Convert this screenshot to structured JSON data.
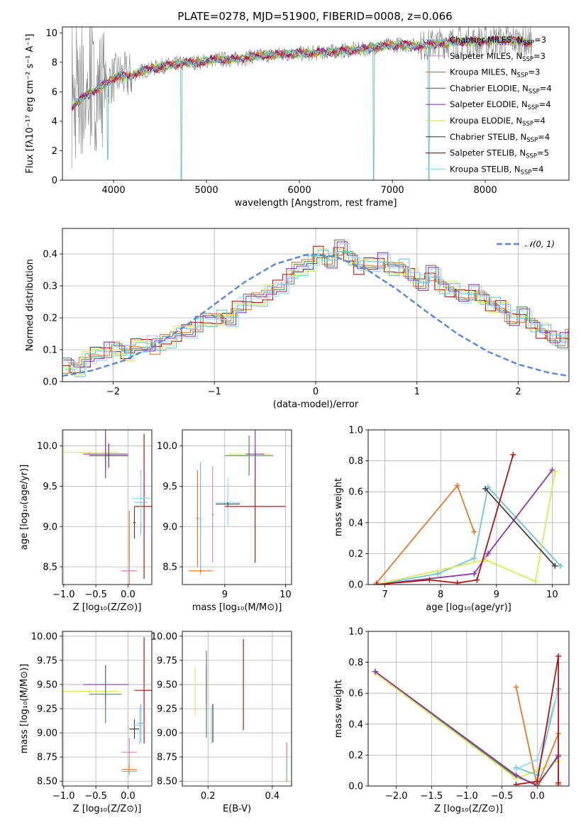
{
  "figure_title": "PLATE=0278, MJD=51900, FIBERID=0008, z=0.066",
  "colors": {
    "Chabrier MILES": "#6fc4d4",
    "Salpeter MILES": "#e486c0",
    "Kroupa MILES": "#e07a33",
    "Chabrier ELODIE": "#5a8a5a",
    "Salpeter ELODIE": "#8a38b0",
    "Kroupa ELODIE": "#d6ea5a",
    "Chabrier STELIB": "#404040",
    "Salpeter STELIB": "#b01818",
    "Kroupa STELIB": "#9ad8ee",
    "data": "#808080",
    "gauss": "#5a86d6"
  },
  "chart_data": [
    {
      "id": "spectrum",
      "type": "line",
      "title": "PLATE=0278, MJD=51900, FIBERID=0008, z=0.066",
      "xlabel": "wavelength [Angstrom, rest frame]",
      "ylabel": "Flux [f_λ 10^-17 erg cm^-2 s^-1 A^-1]",
      "xlim": [
        3450,
        8900
      ],
      "ylim": [
        0,
        10.4
      ],
      "xticks": [
        4000,
        5000,
        6000,
        7000,
        8000
      ],
      "yticks": [
        0,
        2,
        4,
        6,
        8,
        10
      ],
      "legend_loc": "right",
      "legend": [
        "Chabrier MILES, N_SSP=3",
        "Salpeter MILES, N_SSP=3",
        "Kroupa MILES, N_SSP=3",
        "Chabrier ELODIE, N_SSP=4",
        "Salpeter ELODIE, N_SSP=4",
        "Kroupa ELODIE, N_SSP=4",
        "Chabrier STELIB, N_SSP=4",
        "Salpeter STELIB, N_SSP=5",
        "Kroupa STELIB, N_SSP=4"
      ],
      "model_envelope": {
        "x": [
          3550,
          3650,
          3750,
          3850,
          3950,
          4050,
          4150,
          4300,
          4500,
          4700,
          4900,
          5100,
          5300,
          5500,
          5700,
          5900,
          6100,
          6300,
          6500,
          6700,
          6900,
          7100,
          7300,
          7500,
          7700,
          7900,
          8100,
          8300,
          8500
        ],
        "y": [
          5.0,
          5.5,
          5.9,
          6.3,
          6.7,
          7.1,
          7.0,
          7.4,
          7.7,
          7.9,
          8.0,
          8.2,
          8.2,
          8.4,
          8.5,
          8.6,
          8.6,
          8.7,
          8.8,
          8.9,
          9.1,
          9.2,
          9.1,
          9.3,
          9.4,
          9.4,
          9.5,
          9.5,
          9.3
        ]
      },
      "absorption_dips": [
        {
          "x": 3935,
          "y": 1.4
        },
        {
          "x": 4730,
          "y": 0.0
        },
        {
          "x": 6800,
          "y": 0.0
        },
        {
          "x": 7395,
          "y": 0.0
        }
      ]
    },
    {
      "id": "residuals",
      "type": "histogram",
      "xlabel": "(data-model)/error",
      "ylabel": "Normed distribution",
      "xlim": [
        -2.5,
        2.5
      ],
      "ylim": [
        0,
        0.48
      ],
      "xticks": [
        -2,
        -1,
        0,
        1,
        2
      ],
      "yticks": [
        0.0,
        0.1,
        0.2,
        0.3,
        0.4
      ],
      "grid": true,
      "legend": [
        "𝒩(0, 1)"
      ],
      "legend_loc": "top-right",
      "bin_width": 0.1,
      "bins_from": -2.5,
      "values": [
        0.05,
        0.04,
        0.07,
        0.09,
        0.1,
        0.1,
        0.09,
        0.11,
        0.12,
        0.11,
        0.13,
        0.15,
        0.16,
        0.18,
        0.19,
        0.2,
        0.19,
        0.24,
        0.25,
        0.26,
        0.28,
        0.3,
        0.33,
        0.35,
        0.37,
        0.4,
        0.38,
        0.42,
        0.39,
        0.36,
        0.37,
        0.38,
        0.35,
        0.36,
        0.33,
        0.31,
        0.34,
        0.3,
        0.29,
        0.27,
        0.28,
        0.26,
        0.24,
        0.23,
        0.2,
        0.21,
        0.18,
        0.16,
        0.14,
        0.13,
        0.14,
        0.13,
        0.12,
        0.1,
        0.09,
        0.08,
        0.09,
        0.07,
        0.06,
        0.05,
        0.05,
        0.04,
        0.04,
        0.03,
        0.03,
        0.03,
        0.02,
        0.03,
        0.02,
        0.02,
        0.02
      ],
      "gauss_x": [
        -2.5,
        -2.2,
        -1.9,
        -1.6,
        -1.3,
        -1.0,
        -0.7,
        -0.4,
        -0.1,
        0.0,
        0.2,
        0.5,
        0.8,
        1.1,
        1.4,
        1.7,
        2.0,
        2.3,
        2.5
      ],
      "gauss_y": [
        0.0175,
        0.0355,
        0.0656,
        0.1109,
        0.1714,
        0.242,
        0.3123,
        0.3683,
        0.397,
        0.3989,
        0.391,
        0.3521,
        0.2897,
        0.2179,
        0.1497,
        0.094,
        0.054,
        0.0283,
        0.0175
      ]
    },
    {
      "id": "age_vs_Z",
      "type": "errorbar",
      "xlabel": "Z [log10(Z/Z☉)]",
      "ylabel": "age [log10(age/yr)]",
      "xlim": [
        -1.02,
        0.37
      ],
      "ylim": [
        8.28,
        10.2
      ],
      "xticks": [
        -1.0,
        -0.5,
        0.0
      ],
      "yticks": [
        8.5,
        9.0,
        9.5,
        10.0
      ],
      "grid": true,
      "points": [
        {
          "m": "Kroupa ELODIE",
          "x": -0.6,
          "y": 9.92,
          "xerr": 0.45,
          "yerr": 0.02
        },
        {
          "m": "Chabrier ELODIE",
          "x": -0.35,
          "y": 9.9,
          "xerr": 0.3,
          "yerr": 0.2
        },
        {
          "m": "Salpeter ELODIE",
          "x": -0.35,
          "y": 9.9,
          "xerr": 0.35,
          "yerr": 0.3
        },
        {
          "m": "Chabrier STELIB",
          "x": -0.3,
          "y": 9.88,
          "xerr": 0.3,
          "yerr": 0.15
        },
        {
          "m": "Salpeter STELIB",
          "x": 0.25,
          "y": 9.25,
          "xerr": 0.15,
          "yerr": 0.9
        },
        {
          "m": "Chabrier MILES",
          "x": 0.2,
          "y": 9.3,
          "xerr": 0.1,
          "yerr": 0.4
        },
        {
          "m": "Kroupa STELIB",
          "x": 0.2,
          "y": 9.35,
          "xerr": 0.15,
          "yerr": 0.3
        },
        {
          "m": "Kroupa MILES",
          "x": 0.02,
          "y": 8.45,
          "xerr": 0.12,
          "yerr": 0.75
        },
        {
          "m": "Salpeter MILES",
          "x": 0.02,
          "y": 8.45,
          "xerr": 0.12,
          "yerr": 0.05
        },
        {
          "m": "Chabrier STELIB",
          "x": 0.1,
          "y": 9.05,
          "xerr": 0.02,
          "yerr": 0.2
        }
      ]
    },
    {
      "id": "age_vs_mass",
      "type": "errorbar",
      "xlabel": "mass [log10(M/M☉)]",
      "ylabel": "",
      "xlim": [
        8.3,
        10.1
      ],
      "ylim": [
        8.28,
        10.2
      ],
      "xticks": [
        9,
        10
      ],
      "xticklabels": [
        "9",
        "10"
      ],
      "yticks": [
        8.5,
        9.0,
        9.5,
        10.0
      ],
      "grid": true,
      "extra_xtick": 8,
      "points": [
        {
          "m": "Chabrier MILES",
          "x": 8.6,
          "y": 9.1,
          "xerr": 0.02,
          "yerr": 0.7
        },
        {
          "m": "Salpeter MILES",
          "x": 8.8,
          "y": 9.15,
          "xerr": 0.02,
          "yerr": 0.6
        },
        {
          "m": "Kroupa MILES",
          "x": 8.6,
          "y": 8.45,
          "xerr": 0.2,
          "yerr": 0.02
        },
        {
          "m": "Kroupa MILES",
          "x": 8.55,
          "y": 9.1,
          "xerr": 0.02,
          "yerr": 0.6
        },
        {
          "m": "Kroupa STELIB",
          "x": 9.05,
          "y": 9.3,
          "xerr": 0.2,
          "yerr": 0.3
        },
        {
          "m": "Chabrier STELIB",
          "x": 9.05,
          "y": 9.28,
          "xerr": 0.2,
          "yerr": 0.02
        },
        {
          "m": "Salpeter STELIB",
          "x": 9.5,
          "y": 9.25,
          "xerr": 0.5,
          "yerr": 0.7
        },
        {
          "m": "Kroupa ELODIE",
          "x": 9.4,
          "y": 9.9,
          "xerr": 0.35,
          "yerr": 0.2
        },
        {
          "m": "Chabrier ELODIE",
          "x": 9.4,
          "y": 9.88,
          "xerr": 0.4,
          "yerr": 0.25
        },
        {
          "m": "Salpeter ELODIE",
          "x": 9.5,
          "y": 9.9,
          "xerr": 0.15,
          "yerr": 0.3
        }
      ]
    },
    {
      "id": "mass_weight_vs_age",
      "type": "line",
      "xlabel": "age [log10(age/yr)]",
      "ylabel": "mass weight",
      "xlim": [
        6.7,
        10.3
      ],
      "ylim": [
        0,
        1.0
      ],
      "xticks": [
        7,
        8,
        9,
        10
      ],
      "yticks": [
        0.0,
        0.2,
        0.4,
        0.6,
        0.8,
        1.0
      ],
      "grid": true,
      "series": [
        {
          "m": "Kroupa MILES",
          "x": [
            6.85,
            8.3,
            8.6
          ],
          "y": [
            0.01,
            0.64,
            0.34
          ]
        },
        {
          "m": "Chabrier MILES",
          "x": [
            6.85,
            7.95,
            8.6,
            8.85,
            10.15
          ],
          "y": [
            0.0,
            0.07,
            0.17,
            0.63,
            0.12
          ]
        },
        {
          "m": "Salpeter ELODIE",
          "x": [
            6.85,
            8.6,
            8.85,
            10.0
          ],
          "y": [
            0.0,
            0.07,
            0.2,
            0.74
          ]
        },
        {
          "m": "Kroupa ELODIE",
          "x": [
            6.85,
            8.8,
            9.7,
            10.05
          ],
          "y": [
            0.0,
            0.16,
            0.02,
            0.73
          ]
        },
        {
          "m": "Chabrier STELIB",
          "x": [
            8.8,
            10.05
          ],
          "y": [
            0.62,
            0.12
          ]
        },
        {
          "m": "Salpeter STELIB",
          "x": [
            6.85,
            7.8,
            8.3,
            8.65,
            9.3
          ],
          "y": [
            0.0,
            0.03,
            0.01,
            0.03,
            0.84
          ]
        }
      ]
    },
    {
      "id": "mass_vs_Z",
      "type": "errorbar",
      "xlabel": "Z [log10(Z/Z☉)]",
      "ylabel": "mass [log10(M/M☉)]",
      "xlim": [
        -1.02,
        0.37
      ],
      "ylim": [
        8.45,
        10.05
      ],
      "xticks": [
        -1.0,
        -0.5,
        0.0
      ],
      "yticks": [
        8.5,
        8.75,
        9.0,
        9.25,
        9.5,
        9.75,
        10.0
      ],
      "grid": true,
      "points": [
        {
          "m": "Salpeter ELODIE",
          "x": -0.35,
          "y": 9.5,
          "xerr": 0.35,
          "yerr": 0.2
        },
        {
          "m": "Kroupa ELODIE",
          "x": -0.6,
          "y": 9.43,
          "xerr": 0.45,
          "yerr": 0.02
        },
        {
          "m": "Chabrier ELODIE",
          "x": -0.35,
          "y": 9.4,
          "xerr": 0.25,
          "yerr": 0.3
        },
        {
          "m": "Salpeter STELIB",
          "x": 0.25,
          "y": 9.44,
          "xerr": 0.15,
          "yerr": 0.55
        },
        {
          "m": "Chabrier STELIB",
          "x": 0.1,
          "y": 9.04,
          "xerr": 0.08,
          "yerr": 0.1
        },
        {
          "m": "Kroupa STELIB",
          "x": 0.18,
          "y": 9.08,
          "xerr": 0.1,
          "yerr": 0.2
        },
        {
          "m": "Chabrier MILES",
          "x": 0.2,
          "y": 9.1,
          "xerr": 0.05,
          "yerr": 0.2
        },
        {
          "m": "Salpeter MILES",
          "x": 0.02,
          "y": 8.8,
          "xerr": 0.12,
          "yerr": 0.15
        },
        {
          "m": "Kroupa MILES",
          "x": 0.02,
          "y": 8.62,
          "xerr": 0.12,
          "yerr": 0.05
        },
        {
          "m": "Chabrier MILES",
          "x": 0.02,
          "y": 8.6,
          "xerr": 0.12,
          "yerr": 0.02
        }
      ]
    },
    {
      "id": "mass_vs_ebv",
      "type": "errorbar",
      "xlabel": "E(B-V)",
      "ylabel": "",
      "xlim": [
        0.12,
        0.46
      ],
      "ylim": [
        8.45,
        10.05
      ],
      "xticks": [
        0.2,
        0.4
      ],
      "yticks": [
        8.5,
        8.75,
        9.0,
        9.25,
        9.5,
        9.75,
        10.0
      ],
      "grid": true,
      "points": [
        {
          "m": "Kroupa ELODIE",
          "x": 0.16,
          "y": 9.43,
          "xerr": 0.0,
          "yerr": 0.25
        },
        {
          "m": "Salpeter ELODIE",
          "x": 0.195,
          "y": 9.5,
          "xerr": 0.0,
          "yerr": 0.2
        },
        {
          "m": "Chabrier ELODIE",
          "x": 0.195,
          "y": 9.4,
          "xerr": 0.0,
          "yerr": 0.45
        },
        {
          "m": "Chabrier STELIB",
          "x": 0.215,
          "y": 9.1,
          "xerr": 0.0,
          "yerr": 0.2
        },
        {
          "m": "Kroupa STELIB",
          "x": 0.21,
          "y": 9.08,
          "xerr": 0.0,
          "yerr": 0.2
        },
        {
          "m": "Salpeter STELIB",
          "x": 0.31,
          "y": 9.5,
          "xerr": 0.0,
          "yerr": 0.47
        },
        {
          "m": "Kroupa MILES",
          "x": 0.445,
          "y": 8.7,
          "xerr": 0.0,
          "yerr": 0.2
        },
        {
          "m": "Salpeter MILES",
          "x": 0.445,
          "y": 8.75,
          "xerr": 0.0,
          "yerr": 0.15
        },
        {
          "m": "Chabrier MILES",
          "x": 0.445,
          "y": 8.62,
          "xerr": 0.0,
          "yerr": 0.1
        }
      ]
    },
    {
      "id": "mass_weight_vs_Z",
      "type": "line",
      "xlabel": "Z [log10(Z/Z☉)]",
      "ylabel": "mass weight",
      "xlim": [
        -2.4,
        0.45
      ],
      "ylim": [
        0,
        1.0
      ],
      "xticks": [
        -2.0,
        -1.5,
        -1.0,
        -0.5,
        0.0
      ],
      "yticks": [
        0.0,
        0.2,
        0.4,
        0.6,
        0.8,
        1.0
      ],
      "grid": true,
      "series": [
        {
          "m": "Chabrier ELODIE",
          "x": [
            -2.3,
            -0.3,
            0.0,
            0.3
          ],
          "y": [
            0.74,
            0.06,
            0.01,
            0.19
          ]
        },
        {
          "m": "Kroupa ELODIE",
          "x": [
            -2.3,
            -0.3,
            0.0,
            0.3
          ],
          "y": [
            0.73,
            0.05,
            0.1,
            0.16
          ]
        },
        {
          "m": "Salpeter ELODIE",
          "x": [
            -2.3,
            -0.3,
            0.0,
            0.3
          ],
          "y": [
            0.74,
            0.07,
            0.0,
            0.2
          ]
        },
        {
          "m": "Kroupa MILES",
          "x": [
            -0.3,
            0.0,
            0.3,
            0.3
          ],
          "y": [
            0.64,
            0.0,
            0.34,
            0.01
          ]
        },
        {
          "m": "Chabrier MILES",
          "x": [
            -0.3,
            0.0,
            0.3
          ],
          "y": [
            0.12,
            0.07,
            0.63
          ]
        },
        {
          "m": "Kroupa STELIB",
          "x": [
            -0.3,
            0.0,
            0.3
          ],
          "y": [
            0.11,
            0.17,
            0.62
          ]
        },
        {
          "m": "Salpeter STELIB",
          "x": [
            -0.3,
            0.0,
            0.3,
            0.3
          ],
          "y": [
            0.01,
            0.03,
            0.84,
            0.02
          ]
        }
      ]
    }
  ]
}
